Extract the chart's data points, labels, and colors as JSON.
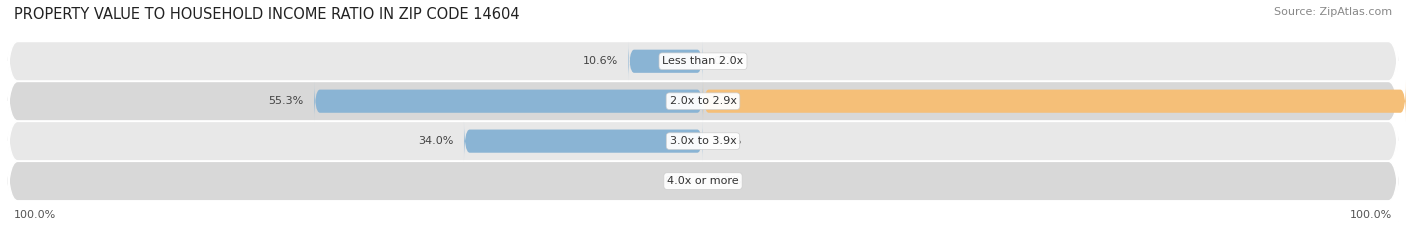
{
  "title": "PROPERTY VALUE TO HOUSEHOLD INCOME RATIO IN ZIP CODE 14604",
  "source": "Source: ZipAtlas.com",
  "categories": [
    "Less than 2.0x",
    "2.0x to 2.9x",
    "3.0x to 3.9x",
    "4.0x or more"
  ],
  "without_mortgage": [
    10.6,
    55.3,
    34.0,
    0.0
  ],
  "with_mortgage": [
    0.0,
    100.0,
    0.0,
    0.0
  ],
  "color_blue": "#8ab4d4",
  "color_orange": "#f5bf78",
  "row_colors": [
    "#e8e8e8",
    "#d8d8d8",
    "#e8e8e8",
    "#d8d8d8"
  ],
  "bar_height": 0.58,
  "title_fontsize": 10.5,
  "source_fontsize": 8,
  "label_fontsize": 8,
  "category_fontsize": 8,
  "bottom_left_label": "100.0%",
  "bottom_right_label": "100.0%"
}
